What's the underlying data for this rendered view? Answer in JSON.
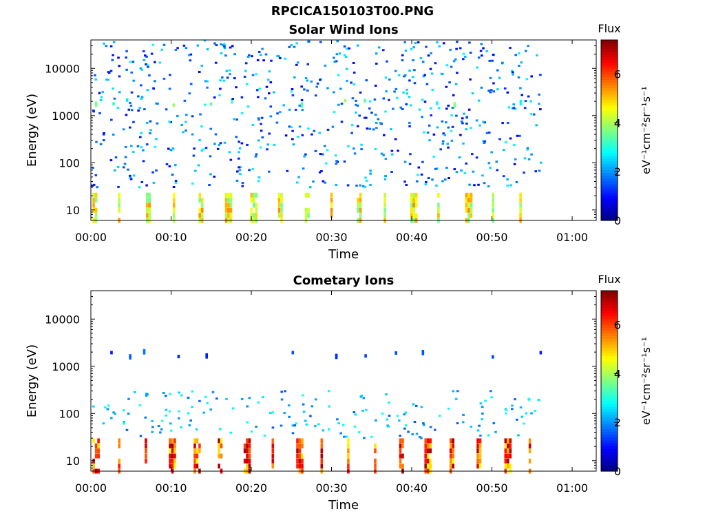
{
  "figure": {
    "title": "RPCICA150103T00.PNG"
  },
  "chart_data": [
    {
      "type": "heatmap",
      "title": "Solar Wind Ions",
      "xlabel": "Time",
      "ylabel": "Energy (eV)",
      "x_ticks": [
        "00:00",
        "00:10",
        "00:20",
        "00:30",
        "00:40",
        "00:50",
        "01:00"
      ],
      "x_tick_minutes": [
        0,
        10,
        20,
        30,
        40,
        50,
        60
      ],
      "xlim_minutes": [
        0,
        63
      ],
      "data_extent_minutes": [
        0,
        56
      ],
      "y_scale": "log",
      "y_ticks": [
        "10",
        "100",
        "1000",
        "10000"
      ],
      "y_tick_values": [
        10,
        100,
        1000,
        10000
      ],
      "ylim": [
        6,
        40000
      ],
      "colorbar": {
        "label": "Flux",
        "units": "eV⁻¹cm⁻²sr⁻¹s⁻¹",
        "ticks": [
          "0",
          "2",
          "4",
          "6"
        ],
        "tick_values": [
          0,
          2,
          4,
          6
        ],
        "range": [
          0,
          7.4
        ],
        "colormap": "jet"
      },
      "bands": [
        {
          "energy_range": [
            6,
            25
          ],
          "flux_range": [
            3.5,
            5.5
          ],
          "note": "low-energy bursts repeating about every 3 minutes"
        },
        {
          "energy_range": [
            1500,
            2200
          ],
          "flux_range": [
            2.5,
            4.0
          ],
          "note": "intermittent solar wind proton band"
        },
        {
          "energy_range": [
            30,
            40000
          ],
          "flux_range": [
            0.8,
            2.8
          ],
          "note": "scattered background counts"
        }
      ]
    },
    {
      "type": "heatmap",
      "title": "Cometary Ions",
      "xlabel": "Time",
      "ylabel": "Energy (eV)",
      "x_ticks": [
        "00:00",
        "00:10",
        "00:20",
        "00:30",
        "00:40",
        "00:50",
        "01:00"
      ],
      "x_tick_minutes": [
        0,
        10,
        20,
        30,
        40,
        50,
        60
      ],
      "xlim_minutes": [
        0,
        63
      ],
      "data_extent_minutes": [
        0,
        56
      ],
      "y_scale": "log",
      "y_ticks": [
        "10",
        "100",
        "1000",
        "10000"
      ],
      "y_tick_values": [
        10,
        100,
        1000,
        10000
      ],
      "ylim": [
        6,
        40000
      ],
      "colorbar": {
        "label": "Flux",
        "units": "eV⁻¹cm⁻²sr⁻¹s⁻¹",
        "ticks": [
          "0",
          "2",
          "4",
          "6"
        ],
        "tick_values": [
          0,
          2,
          4,
          6
        ],
        "range": [
          0,
          7.4
        ],
        "colormap": "jet"
      },
      "bands": [
        {
          "energy_range": [
            6,
            30
          ],
          "flux_range": [
            4.5,
            7.2
          ],
          "note": "strong low-energy bursts repeating about every 3 minutes"
        },
        {
          "energy_range": [
            1500,
            2000
          ],
          "flux_range": [
            1.0,
            1.8
          ],
          "note": "sparse band near 1800 eV"
        },
        {
          "energy_range": [
            30,
            300
          ],
          "flux_range": [
            1.5,
            3.0
          ],
          "note": "scattered counts"
        }
      ]
    }
  ]
}
